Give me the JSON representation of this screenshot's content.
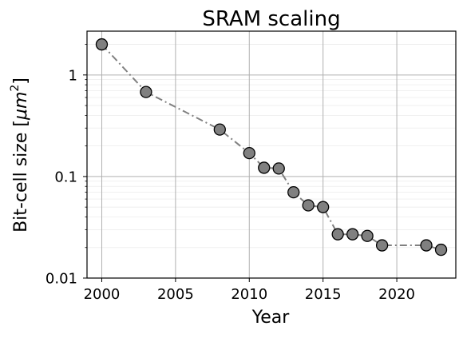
{
  "chart_data": {
    "type": "line",
    "title": "SRAM scaling",
    "xlabel": "Year",
    "ylabel": "Bit-cell size [",
    "ylabel_math": "μm",
    "ylabel_sup": "2",
    "ylabel_close": "]",
    "xlim": [
      1999,
      2024
    ],
    "ylim": [
      0.01,
      2.7
    ],
    "yscale": "log",
    "grid": true,
    "x_ticks": [
      2000,
      2005,
      2010,
      2015,
      2020
    ],
    "x_tick_labels": [
      "2000",
      "2005",
      "2010",
      "2015",
      "2020"
    ],
    "y_ticks": [
      0.01,
      0.1,
      1
    ],
    "y_tick_labels": [
      "0.01",
      "0.1",
      "1"
    ],
    "series": [
      {
        "x": [
          2000,
          2003,
          2008,
          2010,
          2011,
          2012,
          2013,
          2014,
          2015,
          2016,
          2017,
          2018,
          2019,
          2022,
          2023
        ],
        "y": [
          2.0,
          0.68,
          0.29,
          0.17,
          0.122,
          0.12,
          0.07,
          0.052,
          0.05,
          0.027,
          0.027,
          0.026,
          0.021,
          0.021,
          0.019
        ],
        "line_style": "dash-dot",
        "line_color": "#808080",
        "marker": "circle",
        "marker_fill": "#808080",
        "marker_edge": "#000000"
      }
    ]
  }
}
